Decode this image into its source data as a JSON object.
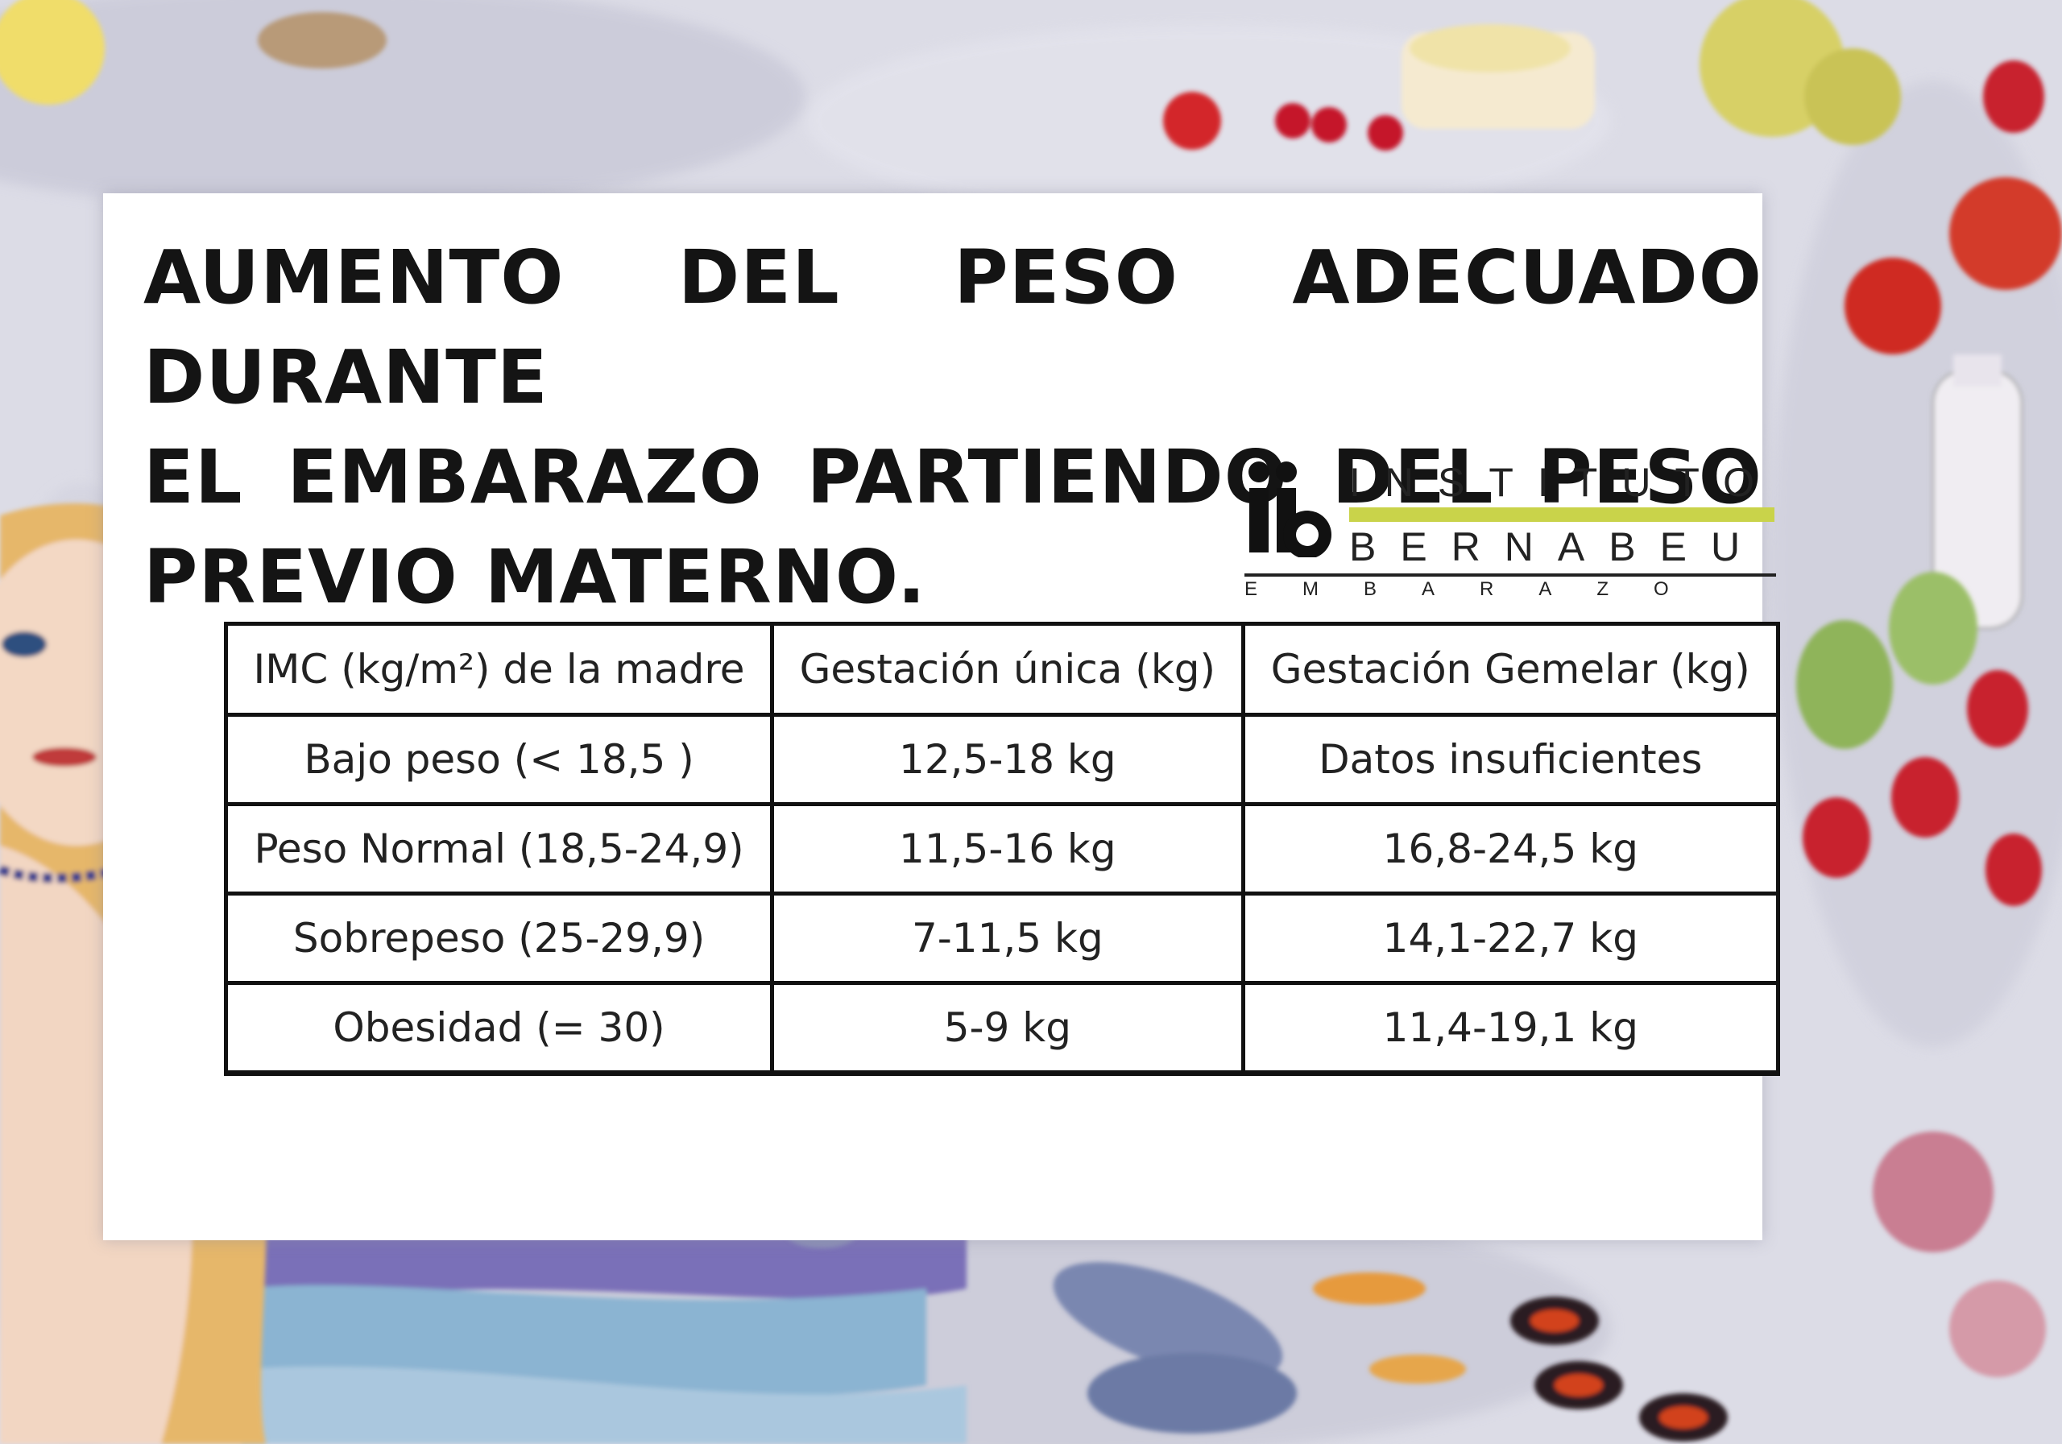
{
  "title_lines": [
    "AUMENTO DEL PESO ADECUADO DURANTE",
    "EL EMBARAZO PARTIENDO DEL PESO",
    "PREVIO MATERNO."
  ],
  "logo": {
    "line1": "INSTITUTO",
    "line2": "BERNABEU",
    "line3": "EMBARAZO",
    "accent_color": "#c9d34a"
  },
  "table": {
    "headers": [
      "IMC (kg/m²) de la madre",
      "Gestación única (kg)",
      "Gestación Gemelar (kg)"
    ],
    "rows": [
      [
        "Bajo peso (< 18,5 )",
        "12,5-18 kg",
        "Datos insuficientes"
      ],
      [
        "Peso Normal (18,5-24,9)",
        "11,5-16 kg",
        "16,8-24,5 kg"
      ],
      [
        "Sobrepeso (25-29,9)",
        "7-11,5 kg",
        "14,1-22,7 kg"
      ],
      [
        "Obesidad (= 30)",
        "5-9 kg",
        "11,4-19,1 kg"
      ]
    ]
  }
}
